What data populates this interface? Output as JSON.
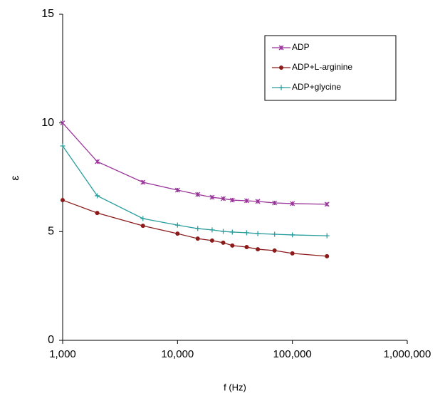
{
  "chart_data": {
    "type": "line",
    "x_label": "f (Hz)",
    "y_label": "ε",
    "xscale": "log",
    "x": [
      1000,
      2000,
      5000,
      10000,
      15000,
      20000,
      25000,
      30000,
      40000,
      50000,
      70000,
      100000,
      200000
    ],
    "series": [
      {
        "name": "ADP",
        "color": "#993399",
        "marker": "x",
        "values": [
          10.0,
          8.22,
          7.27,
          6.91,
          6.71,
          6.58,
          6.52,
          6.45,
          6.42,
          6.39,
          6.32,
          6.29,
          6.26
        ]
      },
      {
        "name": "ADP+L-arginine",
        "color": "#8b1a1a",
        "marker": "circle",
        "values": [
          6.45,
          5.86,
          5.27,
          4.91,
          4.68,
          4.59,
          4.49,
          4.36,
          4.29,
          4.19,
          4.13,
          4.0,
          3.87
        ]
      },
      {
        "name": "ADP+glycine",
        "color": "#2a9d9d",
        "marker": "plus",
        "values": [
          8.94,
          6.65,
          5.6,
          5.3,
          5.14,
          5.08,
          5.01,
          4.98,
          4.95,
          4.91,
          4.88,
          4.85,
          4.81
        ]
      }
    ],
    "xlim": [
      1000,
      1000000
    ],
    "xticks": [
      {
        "value": 1000,
        "label": "1,000"
      },
      {
        "value": 10000,
        "label": "10,000"
      },
      {
        "value": 100000,
        "label": "100,000"
      },
      {
        "value": 1000000,
        "label": "1,000,000"
      }
    ],
    "ylim": [
      0,
      15
    ],
    "yticks": [
      0,
      5,
      10,
      15
    ],
    "grid": false,
    "legend": "upper right"
  }
}
